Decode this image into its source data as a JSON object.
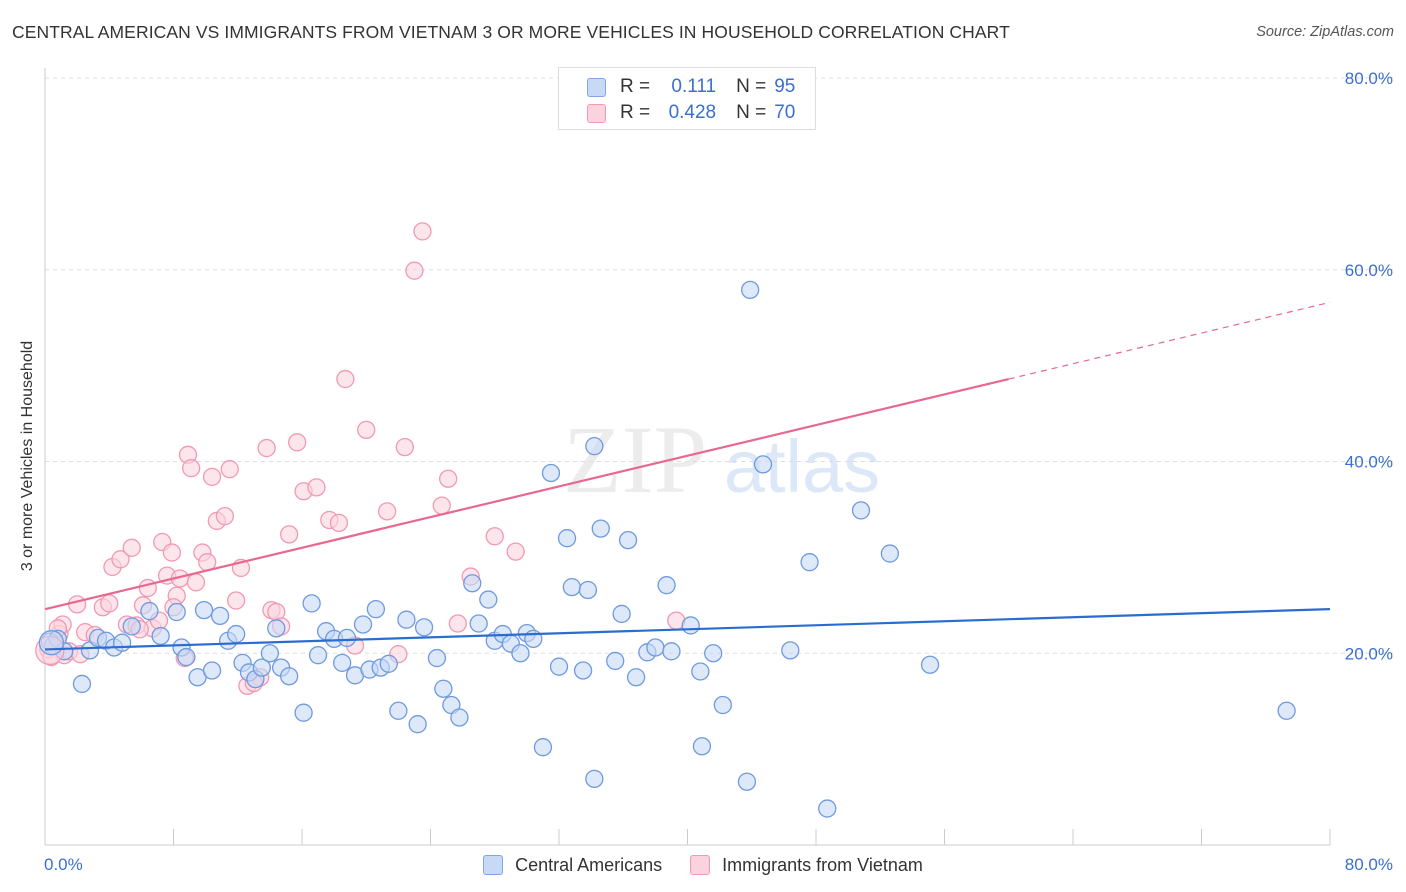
{
  "title": "CENTRAL AMERICAN VS IMMIGRANTS FROM VIETNAM 3 OR MORE VEHICLES IN HOUSEHOLD CORRELATION CHART",
  "source": "Source: ZipAtlas.com",
  "watermark": {
    "zip": "ZIP",
    "atlas": "atlas"
  },
  "legend_top": {
    "rows": [
      {
        "r_label": "R =",
        "r_value": "0.111",
        "n_label": "N =",
        "n_value": "95",
        "color": "#7ea6e8",
        "fill": "#c7d9f5"
      },
      {
        "r_label": "R =",
        "r_value": "0.428",
        "n_label": "N =",
        "n_value": "70",
        "color": "#f199b3",
        "fill": "#fbd3df"
      }
    ]
  },
  "legend_bottom": {
    "items": [
      {
        "label": "Central Americans",
        "color": "#7ea6e8",
        "fill": "#c7d9f5"
      },
      {
        "label": "Immigrants from Vietnam",
        "color": "#f199b3",
        "fill": "#fbd3df"
      }
    ]
  },
  "chart_data": {
    "type": "scatter",
    "title": "CENTRAL AMERICAN VS IMMIGRANTS FROM VIETNAM 3 OR MORE VEHICLES IN HOUSEHOLD CORRELATION CHART",
    "xlabel": "",
    "ylabel": "3 or more Vehicles in Household",
    "xlim": [
      0,
      80
    ],
    "ylim": [
      0,
      80
    ],
    "x_tick_labels": [
      "0.0%",
      "80.0%"
    ],
    "y_tick_labels": [
      {
        "value": 20,
        "label": "20.0%"
      },
      {
        "value": 40,
        "label": "40.0%"
      },
      {
        "value": 60,
        "label": "60.0%"
      },
      {
        "value": 80,
        "label": "80.0%"
      }
    ],
    "grid": true,
    "legend_position": "top-center",
    "series": [
      {
        "name": "Central Americans",
        "color": "#6f9ae0",
        "fill": "#c7d9f5",
        "line_color": "#2a6dd0",
        "trend": {
          "x0": 0,
          "y0": 20.4,
          "x1": 80,
          "y1": 24.6,
          "solid_until": 80
        },
        "points": [
          [
            0.3,
            21.2
          ],
          [
            0.5,
            20.8
          ],
          [
            0.8,
            21.5
          ],
          [
            1.2,
            20.2
          ],
          [
            2.3,
            16.8
          ],
          [
            2.8,
            20.3
          ],
          [
            3.3,
            21.6
          ],
          [
            3.8,
            21.3
          ],
          [
            4.3,
            20.6
          ],
          [
            4.8,
            21.1
          ],
          [
            5.4,
            22.8
          ],
          [
            6.5,
            24.4
          ],
          [
            7.2,
            21.8
          ],
          [
            8.2,
            24.3
          ],
          [
            8.5,
            20.6
          ],
          [
            8.8,
            19.6
          ],
          [
            9.5,
            17.5
          ],
          [
            9.9,
            24.5
          ],
          [
            10.4,
            18.2
          ],
          [
            10.9,
            23.9
          ],
          [
            11.4,
            21.3
          ],
          [
            11.9,
            22.0
          ],
          [
            12.3,
            19.0
          ],
          [
            12.7,
            18.0
          ],
          [
            13.1,
            17.3
          ],
          [
            13.5,
            18.5
          ],
          [
            14.0,
            20.0
          ],
          [
            14.4,
            22.6
          ],
          [
            14.7,
            18.5
          ],
          [
            15.2,
            17.6
          ],
          [
            16.1,
            13.8
          ],
          [
            16.6,
            25.2
          ],
          [
            17.0,
            19.8
          ],
          [
            17.5,
            22.3
          ],
          [
            18.0,
            21.5
          ],
          [
            18.5,
            19.0
          ],
          [
            18.8,
            21.6
          ],
          [
            19.3,
            17.7
          ],
          [
            19.8,
            23.0
          ],
          [
            20.2,
            18.3
          ],
          [
            20.6,
            24.6
          ],
          [
            20.9,
            18.5
          ],
          [
            21.4,
            18.9
          ],
          [
            22.0,
            14.0
          ],
          [
            22.5,
            23.5
          ],
          [
            23.2,
            12.6
          ],
          [
            23.6,
            22.7
          ],
          [
            24.4,
            19.5
          ],
          [
            24.8,
            16.3
          ],
          [
            25.3,
            14.6
          ],
          [
            25.8,
            13.3
          ],
          [
            26.6,
            27.3
          ],
          [
            27.0,
            23.1
          ],
          [
            27.6,
            25.6
          ],
          [
            28.0,
            21.3
          ],
          [
            28.5,
            22.0
          ],
          [
            29.0,
            21.0
          ],
          [
            29.6,
            20.0
          ],
          [
            30.0,
            22.1
          ],
          [
            30.4,
            21.5
          ],
          [
            31.0,
            10.2
          ],
          [
            31.5,
            38.8
          ],
          [
            32.0,
            18.6
          ],
          [
            32.5,
            32.0
          ],
          [
            32.8,
            26.9
          ],
          [
            33.5,
            18.2
          ],
          [
            33.8,
            26.6
          ],
          [
            34.2,
            6.9
          ],
          [
            34.6,
            33.0
          ],
          [
            35.5,
            19.2
          ],
          [
            35.9,
            24.1
          ],
          [
            36.3,
            31.8
          ],
          [
            36.8,
            17.5
          ],
          [
            37.5,
            20.1
          ],
          [
            38.0,
            20.6
          ],
          [
            38.7,
            27.1
          ],
          [
            39.0,
            20.2
          ],
          [
            40.2,
            22.9
          ],
          [
            40.8,
            18.1
          ],
          [
            40.9,
            10.3
          ],
          [
            41.6,
            20.0
          ],
          [
            42.2,
            14.6
          ],
          [
            43.9,
            57.9
          ],
          [
            43.7,
            6.6
          ],
          [
            44.7,
            39.7
          ],
          [
            46.4,
            20.3
          ],
          [
            47.6,
            29.5
          ],
          [
            48.7,
            3.8
          ],
          [
            50.8,
            34.9
          ],
          [
            52.6,
            30.4
          ],
          [
            34.2,
            41.6
          ],
          [
            55.1,
            18.8
          ],
          [
            77.3,
            14.0
          ]
        ]
      },
      {
        "name": "Immigrants from Vietnam",
        "color": "#f199b3",
        "fill": "#fbd3df",
        "line_color": "#e8688f",
        "trend": {
          "x0": 0,
          "y0": 24.6,
          "x1": 80,
          "y1": 56.6,
          "solid_until": 60
        },
        "points": [
          [
            0.2,
            20.4
          ],
          [
            0.6,
            21.0
          ],
          [
            0.9,
            22.0
          ],
          [
            1.2,
            19.8
          ],
          [
            1.5,
            20.2
          ],
          [
            2.0,
            25.1
          ],
          [
            2.5,
            22.2
          ],
          [
            3.1,
            21.9
          ],
          [
            3.6,
            24.8
          ],
          [
            4.0,
            25.2
          ],
          [
            4.2,
            29.0
          ],
          [
            4.7,
            29.8
          ],
          [
            5.1,
            23.0
          ],
          [
            5.4,
            31.0
          ],
          [
            5.7,
            22.9
          ],
          [
            6.1,
            25.0
          ],
          [
            6.4,
            26.8
          ],
          [
            6.7,
            22.6
          ],
          [
            7.1,
            23.4
          ],
          [
            7.3,
            31.6
          ],
          [
            7.6,
            28.1
          ],
          [
            7.9,
            30.5
          ],
          [
            8.2,
            26.0
          ],
          [
            8.4,
            27.8
          ],
          [
            8.7,
            19.5
          ],
          [
            8.9,
            40.7
          ],
          [
            9.1,
            39.3
          ],
          [
            9.4,
            27.4
          ],
          [
            9.8,
            30.5
          ],
          [
            10.1,
            29.5
          ],
          [
            10.4,
            38.4
          ],
          [
            10.7,
            33.8
          ],
          [
            11.2,
            34.3
          ],
          [
            11.5,
            39.2
          ],
          [
            11.9,
            25.5
          ],
          [
            12.2,
            28.9
          ],
          [
            12.6,
            16.6
          ],
          [
            13.4,
            17.5
          ],
          [
            13.8,
            41.4
          ],
          [
            14.1,
            24.5
          ],
          [
            14.4,
            24.3
          ],
          [
            14.7,
            22.8
          ],
          [
            15.2,
            32.4
          ],
          [
            15.7,
            42.0
          ],
          [
            16.1,
            36.9
          ],
          [
            16.9,
            37.3
          ],
          [
            17.7,
            33.9
          ],
          [
            18.3,
            33.6
          ],
          [
            18.7,
            48.6
          ],
          [
            19.3,
            20.8
          ],
          [
            20.0,
            43.3
          ],
          [
            21.3,
            34.8
          ],
          [
            22.0,
            19.9
          ],
          [
            22.4,
            41.5
          ],
          [
            23.0,
            59.9
          ],
          [
            23.5,
            64.0
          ],
          [
            24.7,
            35.4
          ],
          [
            25.1,
            38.2
          ],
          [
            25.7,
            23.1
          ],
          [
            26.5,
            28.0
          ],
          [
            28.0,
            32.2
          ],
          [
            29.3,
            30.6
          ],
          [
            0.4,
            19.6
          ],
          [
            1.1,
            23.0
          ],
          [
            2.2,
            19.9
          ],
          [
            5.9,
            22.5
          ],
          [
            8.0,
            24.8
          ],
          [
            13.0,
            16.9
          ],
          [
            39.3,
            23.4
          ],
          [
            0.8,
            22.6
          ]
        ]
      }
    ]
  }
}
